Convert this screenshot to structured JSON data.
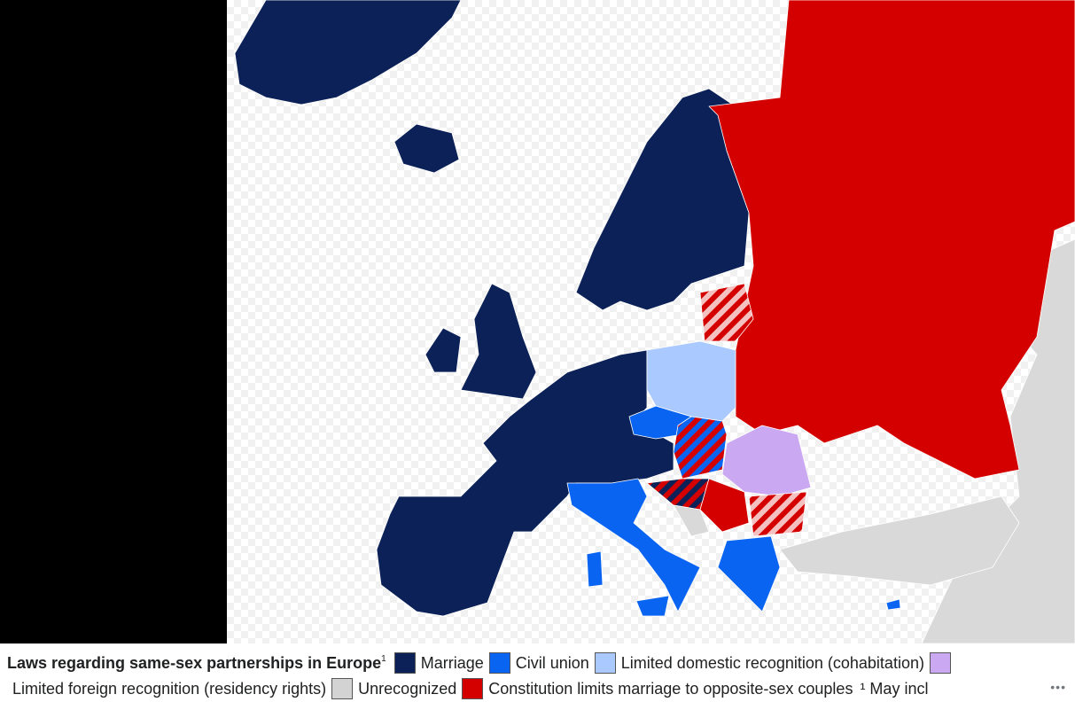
{
  "caption": {
    "title": "Laws regarding same-sex partnerships in Europe",
    "title_note": "1",
    "legend": [
      {
        "label": "Marriage",
        "color": "#0b2157"
      },
      {
        "label": "Civil union",
        "color": "#0a64f2"
      },
      {
        "label": "Limited domestic recognition (cohabitation)",
        "color": "#a9c9ff"
      },
      {
        "label": "Limited foreign recognition (residency rights)",
        "color": "#cba9f2"
      },
      {
        "label": "Unrecognized",
        "color": "#d3d3d3"
      },
      {
        "label": "Constitution limits marriage to opposite-sex couples",
        "color": "#d40000"
      }
    ],
    "footnote": "¹ May incl",
    "more": "•••"
  }
}
